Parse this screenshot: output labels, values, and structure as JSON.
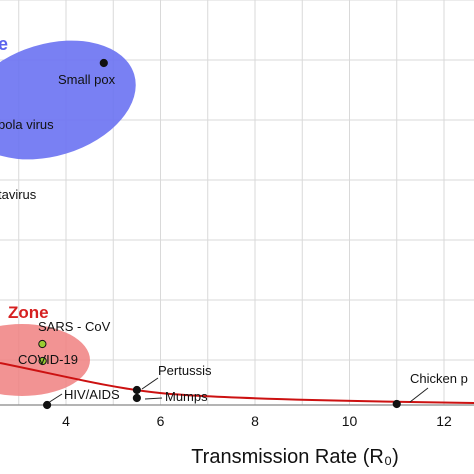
{
  "chart_data": {
    "type": "scatter",
    "title": "",
    "xlabel": "Transmission Rate (R₀)",
    "ylabel": "",
    "xlim": [
      2.7,
      13.5
    ],
    "x_ticks": [
      4,
      6,
      8,
      10,
      12
    ],
    "x_tick_labels": [
      "4",
      "6",
      "8",
      "10",
      "12"
    ],
    "grid": true,
    "zones": [
      {
        "label": "e",
        "color": "#5b63ee"
      },
      {
        "label": "Zone",
        "color": "#d62020"
      }
    ],
    "points": [
      {
        "name": "Small pox",
        "x": 4.8
      },
      {
        "name": "bola virus",
        "x": 2.9
      },
      {
        "name": "tavirus",
        "x": 2.7
      },
      {
        "name": "SARS - CoV",
        "x": 3.5
      },
      {
        "name": "COVID-19",
        "x": 3.4
      },
      {
        "name": "Pertussis",
        "x": 5.5
      },
      {
        "name": "HIV/AIDS",
        "x": 3.6
      },
      {
        "name": "Mumps",
        "x": 5.5
      },
      {
        "name": "Chicken p",
        "x": 11.0
      }
    ],
    "trend_line_color": "#cc1111"
  }
}
